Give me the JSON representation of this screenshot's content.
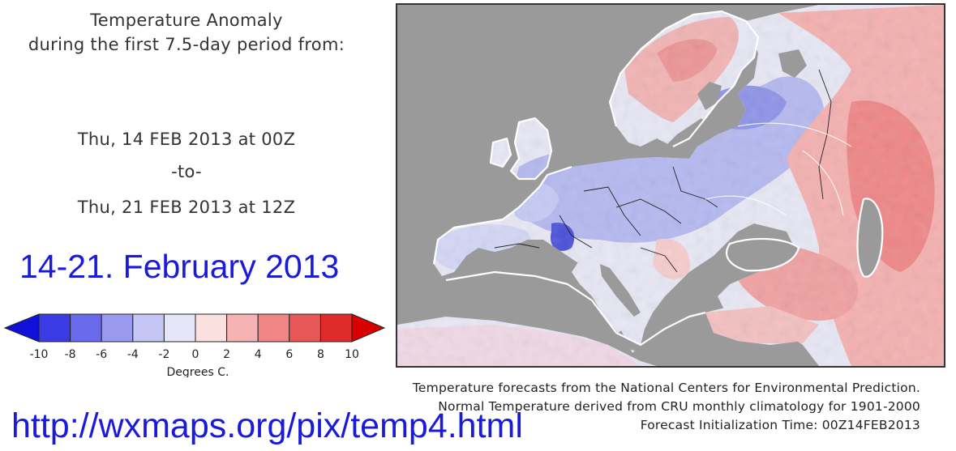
{
  "header": {
    "line1": "Temperature Anomaly",
    "line2": "during the first 7.5-day period from:"
  },
  "period": {
    "start": "Thu, 14 FEB 2013 at 00Z",
    "separator": "-to-",
    "end": "Thu, 21 FEB 2013 at 12Z"
  },
  "overlay": {
    "date_range": "14-21. February 2013",
    "url": "http://wxmaps.org/pix/temp4.html"
  },
  "legend": {
    "ticks": [
      "-10",
      "-8",
      "-6",
      "-4",
      "-2",
      "0",
      "2",
      "4",
      "6",
      "8",
      "10"
    ],
    "unit_label": "Degrees C.",
    "colors": [
      "#1010d8",
      "#3b3be6",
      "#6a6aec",
      "#9a9af0",
      "#c6c6f5",
      "#e6e6fb",
      "#fbe0e0",
      "#f5b3b3",
      "#ef8585",
      "#e85858",
      "#e02b2b",
      "#d80000"
    ]
  },
  "map": {
    "ocean_color": "#9a9a9a",
    "cold_color": "#b4b8f0",
    "warm_color": "#f2b3b3",
    "neutral_color": "#e8e8f6"
  },
  "credits": {
    "line1": "Temperature forecasts from the National Centers for Environmental Prediction.",
    "line2": "Normal Temperature derived from CRU monthly climatology for 1901-2000",
    "line3": "Forecast Initialization Time: 00Z14FEB2013"
  }
}
